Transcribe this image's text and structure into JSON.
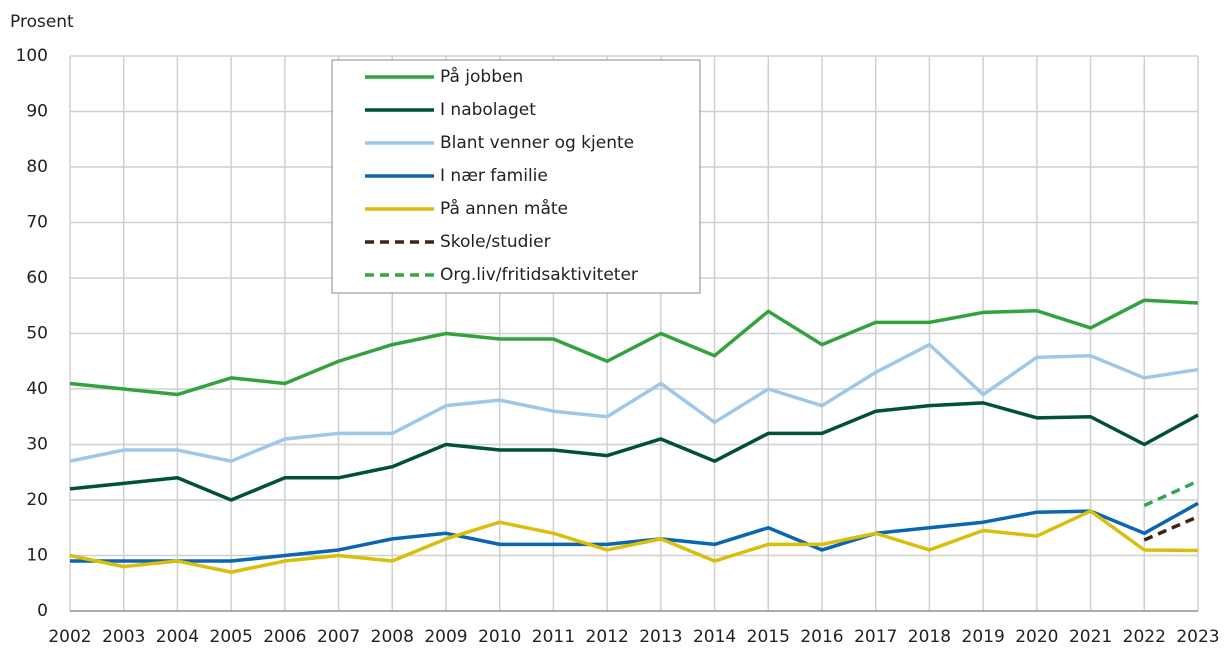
{
  "chart_data": {
    "type": "line",
    "y_label": "Prosent",
    "x": [
      "2002",
      "2003",
      "2004",
      "2005",
      "2006",
      "2007",
      "2008",
      "2009",
      "2010",
      "2011",
      "2012",
      "2013",
      "2014",
      "2015",
      "2016",
      "2017",
      "2018",
      "2019",
      "2020",
      "2021",
      "2022",
      "2023"
    ],
    "ylim": [
      0,
      100
    ],
    "yticks": [
      0,
      10,
      20,
      30,
      40,
      50,
      60,
      70,
      80,
      90,
      100
    ],
    "grid": true,
    "legend": "top",
    "series": [
      {
        "name": "På jobben",
        "color": "#33a23d",
        "dash": false,
        "values": [
          41,
          40,
          39,
          42,
          41,
          45,
          48,
          50,
          49,
          49,
          45,
          50,
          46,
          54,
          48,
          52,
          52,
          53.8,
          54.1,
          51,
          56,
          55.5
        ]
      },
      {
        "name": "I nabolaget",
        "color": "#00503a",
        "dash": false,
        "values": [
          22,
          23,
          24,
          20,
          24,
          24,
          26,
          30,
          29,
          29,
          28,
          31,
          27,
          32,
          32,
          36,
          37,
          37.5,
          34.8,
          35,
          30,
          35.3
        ]
      },
      {
        "name": "Blant venner og kjente",
        "color": "#9ec8ea",
        "dash": false,
        "values": [
          27,
          29,
          29,
          27,
          31,
          32,
          32,
          37,
          38,
          36,
          35,
          41,
          34,
          40,
          37,
          43,
          48,
          39,
          45.7,
          46,
          42,
          43.5
        ]
      },
      {
        "name": "I nær familie",
        "color": "#0a66b0",
        "dash": false,
        "values": [
          9,
          9,
          9,
          9,
          10,
          11,
          13,
          14,
          12,
          12,
          12,
          13,
          12,
          15,
          11,
          14,
          15,
          16,
          17.8,
          18,
          14,
          19.4
        ]
      },
      {
        "name": "På annen måte",
        "color": "#d9be0c",
        "dash": false,
        "values": [
          10,
          8,
          9,
          7,
          9,
          10,
          9,
          13,
          16,
          14,
          11,
          13,
          9,
          12,
          12,
          14,
          11,
          14.5,
          13.5,
          18,
          11,
          10.9
        ]
      },
      {
        "name": "Skole/studier",
        "color": "#3d2314",
        "dash": true,
        "values": [
          null,
          null,
          null,
          null,
          null,
          null,
          null,
          null,
          null,
          null,
          null,
          null,
          null,
          null,
          null,
          null,
          null,
          null,
          null,
          null,
          12.8,
          17
        ]
      },
      {
        "name": "Org.liv/fritidsaktiviteter",
        "color": "#2fa84a",
        "dash": true,
        "values": [
          null,
          null,
          null,
          null,
          null,
          null,
          null,
          null,
          null,
          null,
          null,
          null,
          null,
          null,
          null,
          null,
          null,
          null,
          null,
          null,
          19,
          23.4
        ]
      }
    ]
  }
}
